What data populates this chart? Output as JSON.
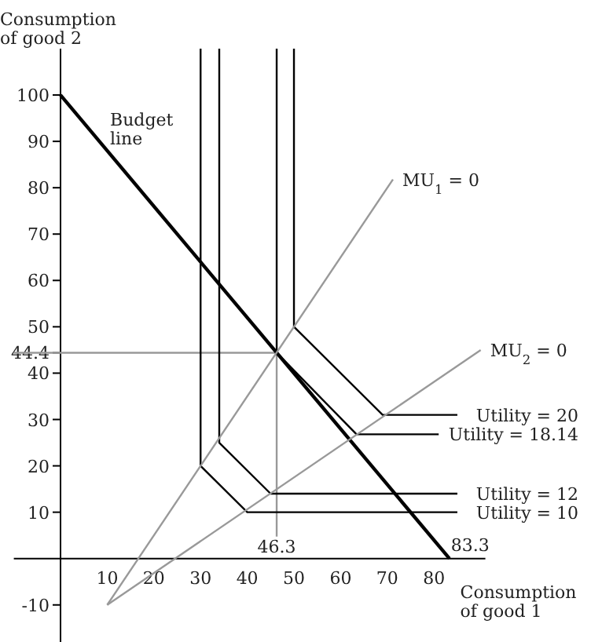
{
  "chart_data": {
    "type": "line",
    "xlabel": "Consumption of good 1",
    "ylabel": "Consumption of good 2",
    "xlim": [
      -10,
      91
    ],
    "ylim": [
      -18,
      110
    ],
    "xticks": [
      10,
      20,
      30,
      40,
      50,
      60,
      70,
      80
    ],
    "yticks": [
      -10,
      10,
      20,
      30,
      40,
      {
        "value": 44.4,
        "label": "44.4"
      },
      50,
      60,
      70,
      80,
      90,
      100
    ],
    "ref_lines": [
      {
        "axis": "y",
        "value": 44.4,
        "color": "#999999"
      },
      {
        "axis": "x",
        "value": 46.3,
        "label": "46.3",
        "color": "#999999"
      }
    ],
    "series": [
      {
        "color": "#000000",
        "x": [
          0,
          83.3
        ],
        "values": [
          100,
          0
        ]
      },
      {
        "name": "Utility = 10",
        "color": "#000000",
        "x": [
          30,
          30,
          40,
          85
        ],
        "values": [
          110,
          20,
          10,
          10
        ]
      },
      {
        "name": "Utility = 12",
        "color": "#000000",
        "x": [
          34,
          34,
          45,
          85
        ],
        "values": [
          110,
          25,
          14,
          14
        ]
      },
      {
        "name": "Utility = 18.14",
        "color": "#000000",
        "x": [
          46.3,
          46.3,
          63.4,
          81
        ],
        "values": [
          110,
          44.4,
          26.8,
          26.8
        ]
      },
      {
        "name": "Utility = 20",
        "color": "#000000",
        "x": [
          50,
          50,
          69,
          85
        ],
        "values": [
          110,
          50,
          31,
          31
        ]
      },
      {
        "name": "MU$_{1}$ = 0",
        "color": "#999999",
        "x": [
          10,
          71.2
        ],
        "values": [
          -10,
          81.8
        ]
      },
      {
        "name": "MU$_{2}$ = 0",
        "color": "#999999",
        "x": [
          10,
          90
        ],
        "values": [
          -10,
          45
        ]
      }
    ],
    "annotations": [
      "Budget line",
      {
        "text": "83.3",
        "x": 83.3,
        "y": 0
      }
    ]
  }
}
